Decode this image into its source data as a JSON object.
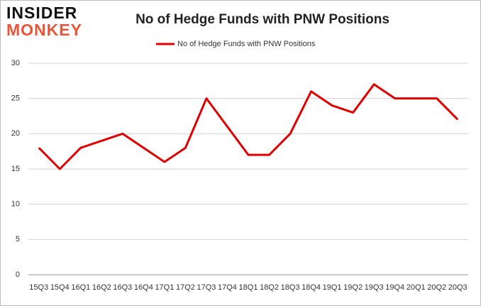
{
  "logo": {
    "line1": "INSIDER",
    "line2": "MONKEY"
  },
  "chart_data": {
    "type": "line",
    "title": "No of Hedge Funds with PNW Positions",
    "categories": [
      "15Q3",
      "15Q4",
      "16Q1",
      "16Q2",
      "16Q3",
      "16Q4",
      "17Q1",
      "17Q2",
      "17Q3",
      "17Q4",
      "18Q1",
      "18Q2",
      "18Q3",
      "18Q4",
      "19Q1",
      "19Q2",
      "19Q3",
      "19Q4",
      "20Q1",
      "20Q2",
      "20Q3"
    ],
    "series": [
      {
        "name": "No of Hedge Funds with PNW Positions",
        "color": "#e00000",
        "values": [
          18,
          15,
          18,
          19,
          20,
          18,
          16,
          18,
          25,
          21,
          17,
          17,
          20,
          26,
          24,
          23,
          27,
          25,
          25,
          25,
          22
        ]
      }
    ],
    "ylim": [
      0,
      30
    ],
    "yticks": [
      0,
      5,
      10,
      15,
      20,
      25,
      30
    ],
    "grid": true,
    "legend": "top"
  }
}
